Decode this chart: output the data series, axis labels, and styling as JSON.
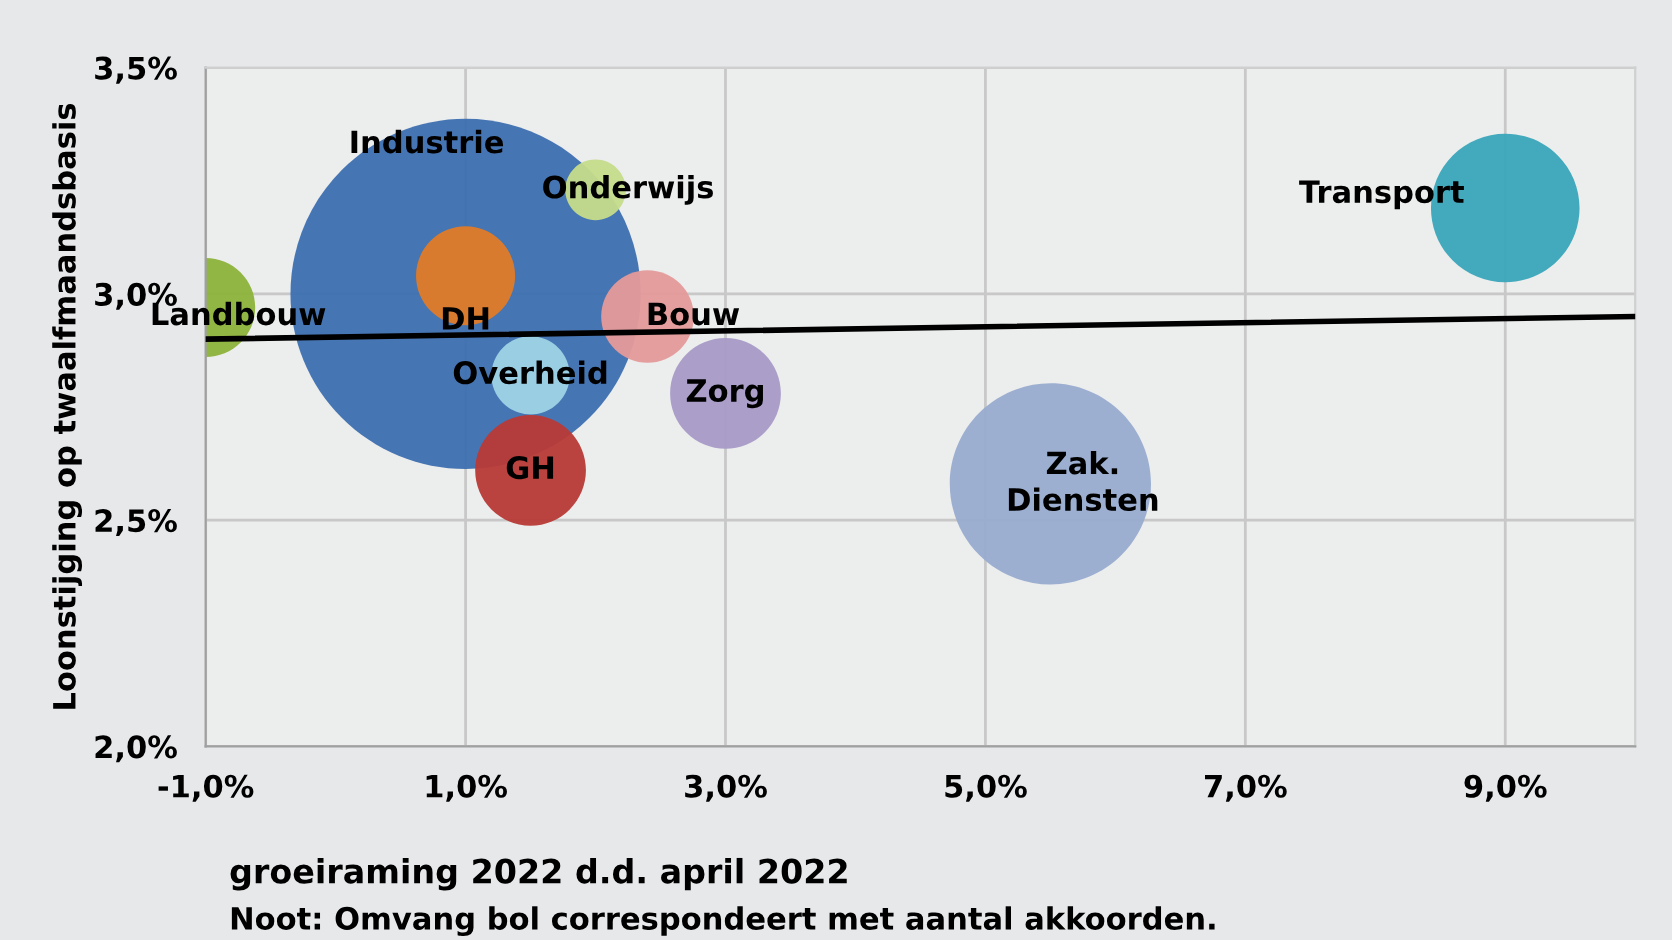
{
  "chart_data": {
    "type": "bubble",
    "ylabel": "Loonstijging op twaalfmaandsbasis",
    "annotations": [
      "groeiraming 2022 d.d. april 2022",
      "Noot: Omvang bol correspondeert met aantal akkoorden."
    ],
    "xlim": [
      -1.0,
      10.0
    ],
    "ylim": [
      2.0,
      3.5
    ],
    "xticks": [
      {
        "value": -1,
        "label": "-1,0%"
      },
      {
        "value": 1,
        "label": "1,0%"
      },
      {
        "value": 3,
        "label": "3,0%"
      },
      {
        "value": 5,
        "label": "5,0%"
      },
      {
        "value": 7,
        "label": "7,0%"
      },
      {
        "value": 9,
        "label": "9,0%"
      }
    ],
    "yticks": [
      {
        "value": 2.0,
        "label": "2,0%"
      },
      {
        "value": 2.5,
        "label": "2,5%"
      },
      {
        "value": 3.0,
        "label": "3,0%"
      },
      {
        "value": 3.5,
        "label": "3,5%"
      }
    ],
    "grid": true,
    "legend": false,
    "series": [
      {
        "name": "Industrie",
        "color": "#3d6fb0",
        "x": [
          1.0
        ],
        "values": [
          3.0
        ],
        "sizes": [
          1
        ]
      },
      {
        "name": "Landbouw",
        "color": "#8db33a",
        "x": [
          -1.0
        ],
        "values": [
          2.97
        ],
        "sizes": [
          0.08
        ]
      },
      {
        "name": "Onderwijs",
        "color": "#c5dc8a",
        "x": [
          2.0
        ],
        "values": [
          3.23
        ],
        "sizes": [
          0.03
        ]
      },
      {
        "name": "DH",
        "color": "#e07b28",
        "x": [
          1.0
        ],
        "values": [
          3.04
        ],
        "sizes": [
          0.08
        ]
      },
      {
        "name": "Bouw",
        "color": "#e59a9a",
        "x": [
          2.4
        ],
        "values": [
          2.95
        ],
        "sizes": [
          0.07
        ]
      },
      {
        "name": "Overheid",
        "color": "#9ed3e6",
        "x": [
          1.5
        ],
        "values": [
          2.82
        ],
        "sizes": [
          0.05
        ]
      },
      {
        "name": "Zorg",
        "color": "#a89bc8",
        "x": [
          3.0
        ],
        "values": [
          2.78
        ],
        "sizes": [
          0.1
        ]
      },
      {
        "name": "GH",
        "color": "#b83a36",
        "x": [
          1.5
        ],
        "values": [
          2.61
        ],
        "sizes": [
          0.1
        ]
      },
      {
        "name": "Zak.\nDiensten",
        "color": "#98acd0",
        "x": [
          5.5
        ],
        "values": [
          2.58
        ],
        "sizes": [
          0.33
        ]
      },
      {
        "name": "Transport",
        "color": "#3aa6bb",
        "x": [
          9.0
        ],
        "values": [
          3.19
        ],
        "sizes": [
          0.18
        ]
      },
      {
        "type": "line",
        "color": "#000000",
        "x": [
          -1.0,
          10.0
        ],
        "values": [
          2.9,
          2.95
        ]
      }
    ]
  }
}
